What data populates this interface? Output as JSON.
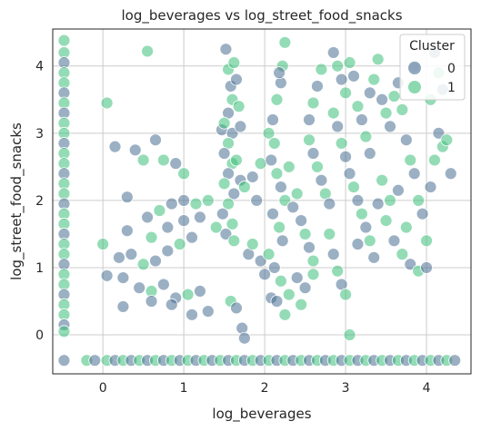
{
  "chart_data": {
    "type": "scatter",
    "title": "log_beverages vs log_street_food_snacks",
    "xlabel": "log_beverages",
    "ylabel": "log_street_food_snacks",
    "xlim": [
      -0.62,
      4.55
    ],
    "ylim": [
      -0.58,
      4.55
    ],
    "xticks": [
      0,
      1,
      2,
      3,
      4
    ],
    "yticks": [
      0,
      1,
      2,
      3,
      4
    ],
    "grid": true,
    "legend": {
      "title": "Cluster",
      "placement": "top-right"
    },
    "series": [
      {
        "name": "0",
        "color": "#4a6f94"
      },
      {
        "name": "1",
        "color": "#3dbf7a"
      }
    ],
    "points": [
      [
        -0.48,
        4.38,
        1
      ],
      [
        -0.48,
        4.2,
        1
      ],
      [
        -0.48,
        4.05,
        0
      ],
      [
        -0.48,
        3.9,
        1
      ],
      [
        -0.48,
        3.75,
        1
      ],
      [
        -0.48,
        3.6,
        0
      ],
      [
        -0.48,
        3.45,
        1
      ],
      [
        -0.48,
        3.3,
        0
      ],
      [
        -0.48,
        3.15,
        1
      ],
      [
        -0.48,
        3.0,
        1
      ],
      [
        -0.48,
        2.85,
        0
      ],
      [
        -0.48,
        2.7,
        1
      ],
      [
        -0.48,
        2.55,
        1
      ],
      [
        -0.48,
        2.4,
        0
      ],
      [
        -0.48,
        2.25,
        1
      ],
      [
        -0.48,
        2.1,
        1
      ],
      [
        -0.48,
        1.95,
        0
      ],
      [
        -0.48,
        1.8,
        1
      ],
      [
        -0.48,
        1.65,
        1
      ],
      [
        -0.48,
        1.5,
        0
      ],
      [
        -0.48,
        1.35,
        1
      ],
      [
        -0.48,
        1.2,
        1
      ],
      [
        -0.48,
        1.05,
        0
      ],
      [
        -0.48,
        0.9,
        1
      ],
      [
        -0.48,
        0.75,
        1
      ],
      [
        -0.48,
        0.6,
        0
      ],
      [
        -0.48,
        0.45,
        1
      ],
      [
        -0.48,
        0.3,
        1
      ],
      [
        -0.48,
        0.15,
        0
      ],
      [
        -0.48,
        0.05,
        1
      ],
      [
        -0.48,
        -0.38,
        0
      ],
      [
        -0.2,
        -0.38,
        1
      ],
      [
        -0.1,
        -0.38,
        0
      ],
      [
        0.05,
        -0.38,
        1
      ],
      [
        0.15,
        -0.38,
        0
      ],
      [
        0.25,
        -0.38,
        1
      ],
      [
        0.35,
        -0.38,
        0
      ],
      [
        0.45,
        -0.38,
        1
      ],
      [
        0.55,
        -0.38,
        0
      ],
      [
        0.65,
        -0.38,
        1
      ],
      [
        0.75,
        -0.38,
        0
      ],
      [
        0.85,
        -0.38,
        1
      ],
      [
        0.95,
        -0.38,
        0
      ],
      [
        1.05,
        -0.38,
        1
      ],
      [
        1.15,
        -0.38,
        0
      ],
      [
        1.25,
        -0.38,
        1
      ],
      [
        1.35,
        -0.38,
        0
      ],
      [
        1.45,
        -0.38,
        1
      ],
      [
        1.55,
        -0.38,
        0
      ],
      [
        1.65,
        -0.38,
        1
      ],
      [
        1.75,
        -0.38,
        0
      ],
      [
        1.85,
        -0.38,
        1
      ],
      [
        1.95,
        -0.38,
        0
      ],
      [
        2.05,
        -0.38,
        1
      ],
      [
        2.15,
        -0.38,
        0
      ],
      [
        2.25,
        -0.38,
        1
      ],
      [
        2.35,
        -0.38,
        0
      ],
      [
        2.45,
        -0.38,
        1
      ],
      [
        2.55,
        -0.38,
        0
      ],
      [
        2.65,
        -0.38,
        1
      ],
      [
        2.75,
        -0.38,
        0
      ],
      [
        2.85,
        -0.38,
        1
      ],
      [
        2.95,
        -0.38,
        0
      ],
      [
        3.05,
        -0.38,
        1
      ],
      [
        3.15,
        -0.38,
        0
      ],
      [
        3.25,
        -0.38,
        1
      ],
      [
        3.35,
        -0.38,
        0
      ],
      [
        3.45,
        -0.38,
        1
      ],
      [
        3.55,
        -0.38,
        0
      ],
      [
        3.65,
        -0.38,
        1
      ],
      [
        3.75,
        -0.38,
        0
      ],
      [
        3.85,
        -0.38,
        1
      ],
      [
        3.95,
        -0.38,
        0
      ],
      [
        4.05,
        -0.38,
        1
      ],
      [
        4.15,
        -0.38,
        0
      ],
      [
        4.25,
        -0.38,
        1
      ],
      [
        4.35,
        -0.38,
        0
      ],
      [
        0.05,
        3.45,
        1
      ],
      [
        0.55,
        4.22,
        1
      ],
      [
        0.15,
        2.8,
        0
      ],
      [
        0.4,
        2.75,
        0
      ],
      [
        0.5,
        2.6,
        1
      ],
      [
        0.65,
        2.9,
        0
      ],
      [
        0.75,
        2.6,
        1
      ],
      [
        0.9,
        2.55,
        0
      ],
      [
        1.0,
        2.4,
        1
      ],
      [
        0.3,
        2.05,
        0
      ],
      [
        0.55,
        1.75,
        0
      ],
      [
        0.7,
        1.85,
        1
      ],
      [
        0.85,
        1.95,
        0
      ],
      [
        1.0,
        2.0,
        0
      ],
      [
        1.15,
        1.95,
        1
      ],
      [
        1.3,
        2.0,
        1
      ],
      [
        0.0,
        1.35,
        1
      ],
      [
        0.2,
        1.15,
        0
      ],
      [
        0.35,
        1.2,
        0
      ],
      [
        0.5,
        1.05,
        1
      ],
      [
        0.65,
        1.1,
        0
      ],
      [
        0.8,
        1.25,
        0
      ],
      [
        0.95,
        1.35,
        1
      ],
      [
        1.1,
        1.45,
        0
      ],
      [
        0.05,
        0.88,
        0
      ],
      [
        0.25,
        0.85,
        0
      ],
      [
        0.45,
        0.7,
        0
      ],
      [
        0.6,
        0.65,
        1
      ],
      [
        0.75,
        0.75,
        0
      ],
      [
        0.9,
        0.55,
        0
      ],
      [
        1.05,
        0.6,
        1
      ],
      [
        1.2,
        0.65,
        0
      ],
      [
        0.25,
        0.42,
        0
      ],
      [
        0.6,
        0.5,
        0
      ],
      [
        0.85,
        0.45,
        0
      ],
      [
        1.1,
        0.3,
        0
      ],
      [
        1.3,
        0.35,
        0
      ],
      [
        0.3,
        1.55,
        0
      ],
      [
        0.6,
        1.45,
        1
      ],
      [
        0.8,
        1.6,
        0
      ],
      [
        1.0,
        1.7,
        0
      ],
      [
        1.2,
        1.75,
        0
      ],
      [
        1.4,
        1.6,
        1
      ],
      [
        1.47,
        3.05,
        0
      ],
      [
        1.52,
        4.25,
        0
      ],
      [
        1.55,
        3.95,
        1
      ],
      [
        1.58,
        3.7,
        0
      ],
      [
        1.6,
        3.5,
        1
      ],
      [
        1.55,
        3.3,
        0
      ],
      [
        1.5,
        3.15,
        1
      ],
      [
        1.6,
        3.0,
        0
      ],
      [
        1.55,
        2.85,
        1
      ],
      [
        1.5,
        2.7,
        0
      ],
      [
        1.6,
        2.55,
        1
      ],
      [
        1.55,
        2.4,
        0
      ],
      [
        1.5,
        2.25,
        1
      ],
      [
        1.62,
        2.1,
        0
      ],
      [
        1.55,
        1.95,
        1
      ],
      [
        1.48,
        1.8,
        0
      ],
      [
        1.6,
        1.65,
        1
      ],
      [
        1.52,
        1.5,
        0
      ],
      [
        1.62,
        4.05,
        1
      ],
      [
        1.65,
        3.8,
        0
      ],
      [
        1.68,
        3.4,
        1
      ],
      [
        1.7,
        3.1,
        0
      ],
      [
        1.65,
        2.6,
        1
      ],
      [
        1.7,
        2.3,
        0
      ],
      [
        1.62,
        1.4,
        1
      ],
      [
        1.58,
        0.5,
        1
      ],
      [
        1.65,
        0.4,
        0
      ],
      [
        1.72,
        0.1,
        0
      ],
      [
        1.75,
        -0.05,
        0
      ],
      [
        1.8,
        1.2,
        0
      ],
      [
        1.85,
        1.35,
        1
      ],
      [
        1.9,
        2.0,
        0
      ],
      [
        1.95,
        1.1,
        0
      ],
      [
        1.75,
        2.2,
        1
      ],
      [
        1.85,
        2.35,
        0
      ],
      [
        1.95,
        2.55,
        1
      ],
      [
        2.05,
        3.0,
        1
      ],
      [
        2.1,
        3.2,
        0
      ],
      [
        2.15,
        3.5,
        1
      ],
      [
        2.2,
        3.75,
        0
      ],
      [
        2.25,
        4.35,
        1
      ],
      [
        2.22,
        4.0,
        1
      ],
      [
        2.18,
        3.9,
        0
      ],
      [
        2.12,
        2.85,
        1
      ],
      [
        2.08,
        2.6,
        0
      ],
      [
        2.15,
        2.4,
        1
      ],
      [
        2.2,
        2.2,
        0
      ],
      [
        2.25,
        2.0,
        1
      ],
      [
        2.1,
        1.8,
        0
      ],
      [
        2.18,
        1.6,
        1
      ],
      [
        2.22,
        1.4,
        0
      ],
      [
        2.05,
        1.2,
        1
      ],
      [
        2.12,
        1.0,
        0
      ],
      [
        2.2,
        0.8,
        1
      ],
      [
        2.08,
        0.55,
        0
      ],
      [
        2.15,
        0.5,
        0
      ],
      [
        2.25,
        0.3,
        1
      ],
      [
        2.3,
        0.6,
        1
      ],
      [
        2.0,
        0.9,
        0
      ],
      [
        2.3,
        2.5,
        1
      ],
      [
        2.35,
        1.9,
        0
      ],
      [
        2.4,
        2.1,
        1
      ],
      [
        2.45,
        1.7,
        0
      ],
      [
        2.5,
        1.5,
        1
      ],
      [
        2.55,
        1.3,
        0
      ],
      [
        2.6,
        1.1,
        1
      ],
      [
        2.4,
        0.85,
        0
      ],
      [
        2.5,
        0.7,
        0
      ],
      [
        2.6,
        0.9,
        1
      ],
      [
        2.45,
        0.45,
        1
      ],
      [
        2.55,
        3.2,
        0
      ],
      [
        2.6,
        3.45,
        1
      ],
      [
        2.65,
        3.7,
        0
      ],
      [
        2.7,
        3.95,
        1
      ],
      [
        2.55,
        2.9,
        1
      ],
      [
        2.6,
        2.7,
        0
      ],
      [
        2.65,
        2.5,
        1
      ],
      [
        2.7,
        2.3,
        0
      ],
      [
        2.75,
        2.1,
        1
      ],
      [
        2.8,
        1.95,
        0
      ],
      [
        2.85,
        3.3,
        1
      ],
      [
        2.9,
        3.1,
        0
      ],
      [
        2.95,
        2.85,
        1
      ],
      [
        3.0,
        2.65,
        0
      ],
      [
        2.85,
        4.2,
        0
      ],
      [
        2.9,
        4.0,
        1
      ],
      [
        2.95,
        3.8,
        0
      ],
      [
        3.0,
        3.6,
        1
      ],
      [
        3.05,
        4.05,
        1
      ],
      [
        3.1,
        3.85,
        0
      ],
      [
        3.15,
        3.4,
        1
      ],
      [
        3.2,
        3.2,
        0
      ],
      [
        3.25,
        2.95,
        1
      ],
      [
        3.05,
        2.4,
        0
      ],
      [
        3.1,
        2.2,
        1
      ],
      [
        3.15,
        2.0,
        0
      ],
      [
        3.2,
        1.8,
        1
      ],
      [
        3.25,
        1.6,
        0
      ],
      [
        2.8,
        1.5,
        1
      ],
      [
        2.85,
        1.2,
        0
      ],
      [
        2.9,
        0.95,
        1
      ],
      [
        2.95,
        0.75,
        0
      ],
      [
        3.0,
        0.6,
        1
      ],
      [
        3.05,
        0.0,
        1
      ],
      [
        3.15,
        1.35,
        0
      ],
      [
        3.3,
        1.4,
        1
      ],
      [
        3.35,
        1.15,
        0
      ],
      [
        3.3,
        3.6,
        0
      ],
      [
        3.35,
        3.8,
        1
      ],
      [
        3.4,
        4.1,
        1
      ],
      [
        3.45,
        3.5,
        0
      ],
      [
        3.5,
        3.3,
        1
      ],
      [
        3.55,
        3.1,
        0
      ],
      [
        3.6,
        3.55,
        1
      ],
      [
        3.65,
        3.75,
        0
      ],
      [
        3.7,
        3.35,
        1
      ],
      [
        3.75,
        2.9,
        0
      ],
      [
        3.8,
        2.6,
        1
      ],
      [
        3.85,
        2.4,
        0
      ],
      [
        3.9,
        2.0,
        1
      ],
      [
        3.95,
        1.8,
        0
      ],
      [
        4.0,
        1.4,
        1
      ],
      [
        4.05,
        2.2,
        0
      ],
      [
        4.1,
        2.6,
        1
      ],
      [
        4.15,
        3.0,
        0
      ],
      [
        4.2,
        2.8,
        1
      ],
      [
        4.25,
        2.9,
        1
      ],
      [
        4.3,
        2.4,
        0
      ],
      [
        3.4,
        1.95,
        0
      ],
      [
        3.5,
        1.7,
        1
      ],
      [
        3.6,
        1.4,
        0
      ],
      [
        3.7,
        1.2,
        1
      ],
      [
        3.8,
        1.05,
        0
      ],
      [
        3.9,
        0.95,
        1
      ],
      [
        4.0,
        1.0,
        0
      ],
      [
        4.05,
        3.5,
        1
      ],
      [
        4.1,
        4.2,
        0
      ],
      [
        4.15,
        3.9,
        1
      ],
      [
        4.2,
        3.65,
        0
      ],
      [
        3.55,
        2.0,
        1
      ],
      [
        3.65,
        2.15,
        0
      ],
      [
        3.75,
        1.6,
        1
      ],
      [
        3.85,
        4.0,
        0
      ],
      [
        3.45,
        2.3,
        1
      ],
      [
        3.3,
        2.7,
        0
      ]
    ]
  }
}
